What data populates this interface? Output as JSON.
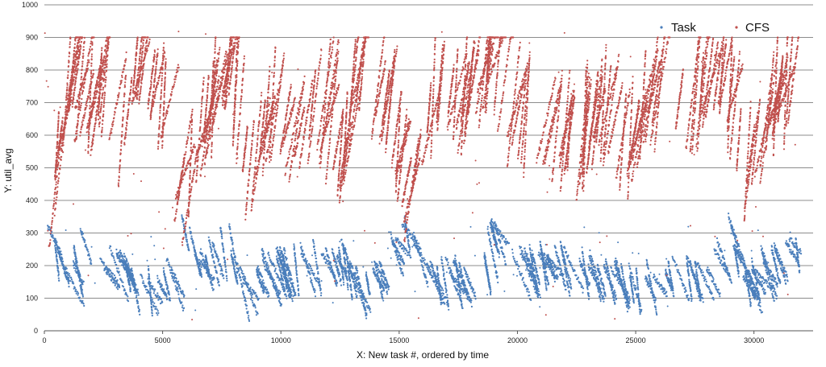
{
  "chart_data": {
    "type": "scatter",
    "title": "",
    "xlabel": "X: New task #, ordered by time",
    "ylabel": "Y: util_avg",
    "xlim": [
      0,
      32500
    ],
    "ylim": [
      0,
      1000
    ],
    "x_ticks": [
      0,
      5000,
      10000,
      15000,
      20000,
      25000,
      30000
    ],
    "y_ticks": [
      0,
      100,
      200,
      300,
      400,
      500,
      600,
      700,
      800,
      900,
      1000
    ],
    "grid": "horizontal",
    "legend_position": "top-right",
    "series": [
      {
        "name": "Task",
        "color": "#4a7ebb",
        "pattern": "sawtooth bursts decaying from about 300 to about 100, mostly 100-250",
        "trend": [
          [
            0,
            300
          ],
          [
            1000,
            110
          ],
          [
            1600,
            280
          ],
          [
            2500,
            160
          ],
          [
            3200,
            200
          ],
          [
            3800,
            100
          ],
          [
            5500,
            150
          ],
          [
            5800,
            300
          ],
          [
            6500,
            180
          ],
          [
            7800,
            260
          ],
          [
            8000,
            110
          ],
          [
            9500,
            170
          ],
          [
            11000,
            190
          ],
          [
            12600,
            200
          ],
          [
            13000,
            110
          ],
          [
            14200,
            170
          ],
          [
            15200,
            300
          ],
          [
            16000,
            140
          ],
          [
            17500,
            150
          ],
          [
            18500,
            130
          ],
          [
            18900,
            300
          ],
          [
            19500,
            160
          ],
          [
            21000,
            200
          ],
          [
            22500,
            180
          ],
          [
            23500,
            150
          ],
          [
            24300,
            140
          ],
          [
            25100,
            120
          ],
          [
            26500,
            160
          ],
          [
            28000,
            150
          ],
          [
            28900,
            290
          ],
          [
            29500,
            130
          ],
          [
            30500,
            180
          ],
          [
            31500,
            250
          ],
          [
            32000,
            210
          ]
        ]
      },
      {
        "name": "CFS",
        "color": "#c0504d",
        "pattern": "dense vertical sweeps rising from about 300 to about 850, concentrated 500-800",
        "trend": [
          [
            0,
            340
          ],
          [
            1000,
            840
          ],
          [
            1500,
            700
          ],
          [
            2500,
            780
          ],
          [
            3200,
            600
          ],
          [
            3800,
            840
          ],
          [
            5000,
            700
          ],
          [
            5800,
            400
          ],
          [
            6500,
            650
          ],
          [
            7800,
            840
          ],
          [
            8500,
            500
          ],
          [
            9500,
            700
          ],
          [
            10500,
            600
          ],
          [
            11500,
            740
          ],
          [
            12500,
            520
          ],
          [
            13000,
            830
          ],
          [
            14500,
            700
          ],
          [
            15200,
            430
          ],
          [
            16500,
            760
          ],
          [
            17500,
            720
          ],
          [
            18200,
            800
          ],
          [
            18900,
            860
          ],
          [
            19500,
            700
          ],
          [
            21000,
            640
          ],
          [
            22500,
            600
          ],
          [
            23500,
            700
          ],
          [
            24500,
            560
          ],
          [
            25500,
            760
          ],
          [
            26500,
            700
          ],
          [
            27500,
            750
          ],
          [
            28700,
            800
          ],
          [
            29500,
            500
          ],
          [
            30500,
            700
          ],
          [
            31500,
            780
          ],
          [
            32000,
            760
          ]
        ]
      }
    ]
  }
}
